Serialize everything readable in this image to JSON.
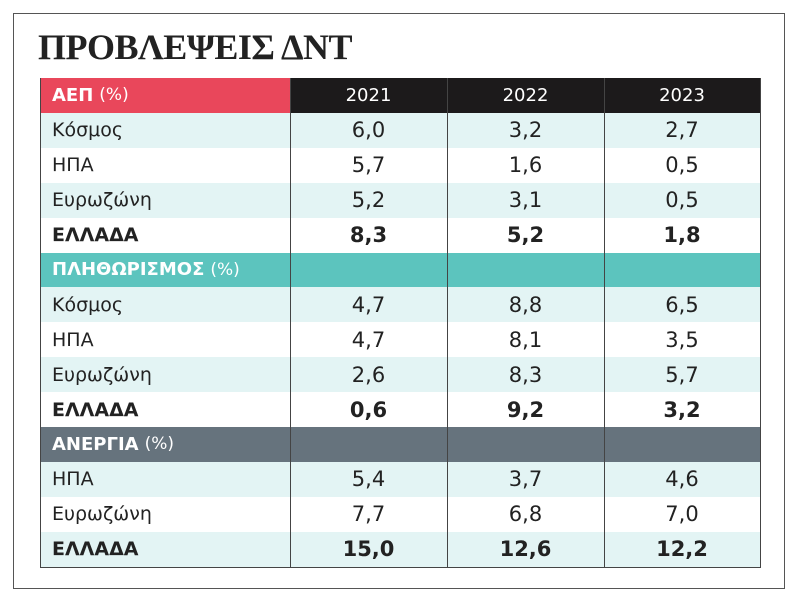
{
  "title": "ΠΡΟΒΛΕΨΕΙΣ ΔΝΤ",
  "years": [
    "2021",
    "2022",
    "2023"
  ],
  "sections": [
    {
      "name": "ΑΕΠ",
      "unit": "(%)",
      "color": "#e9475b",
      "rows": [
        {
          "label": "Κόσμος",
          "values": [
            "6,0",
            "3,2",
            "2,7"
          ]
        },
        {
          "label": "ΗΠΑ",
          "values": [
            "5,7",
            "1,6",
            "0,5"
          ]
        },
        {
          "label": "Ευρωζώνη",
          "values": [
            "5,2",
            "3,1",
            "0,5"
          ]
        },
        {
          "label": "ΕΛΛΑΔΑ",
          "values": [
            "8,3",
            "5,2",
            "1,8"
          ]
        }
      ]
    },
    {
      "name": "ΠΛΗΘΩΡΙΣΜΟΣ",
      "unit": "(%)",
      "color": "#5cc4be",
      "rows": [
        {
          "label": "Κόσμος",
          "values": [
            "4,7",
            "8,8",
            "6,5"
          ]
        },
        {
          "label": "ΗΠΑ",
          "values": [
            "4,7",
            "8,1",
            "3,5"
          ]
        },
        {
          "label": "Ευρωζώνη",
          "values": [
            "2,6",
            "8,3",
            "5,7"
          ]
        },
        {
          "label": "ΕΛΛΑΔΑ",
          "values": [
            "0,6",
            "9,2",
            "3,2"
          ]
        }
      ]
    },
    {
      "name": "ΑΝΕΡΓΙΑ",
      "unit": "(%)",
      "color": "#66737d",
      "rows": [
        {
          "label": "ΗΠΑ",
          "values": [
            "5,4",
            "3,7",
            "4,6"
          ]
        },
        {
          "label": "Ευρωζώνη",
          "values": [
            "7,7",
            "6,8",
            "7,0"
          ]
        },
        {
          "label": "ΕΛΛΑΔΑ",
          "values": [
            "15,0",
            "12,6",
            "12,2"
          ]
        }
      ]
    }
  ]
}
